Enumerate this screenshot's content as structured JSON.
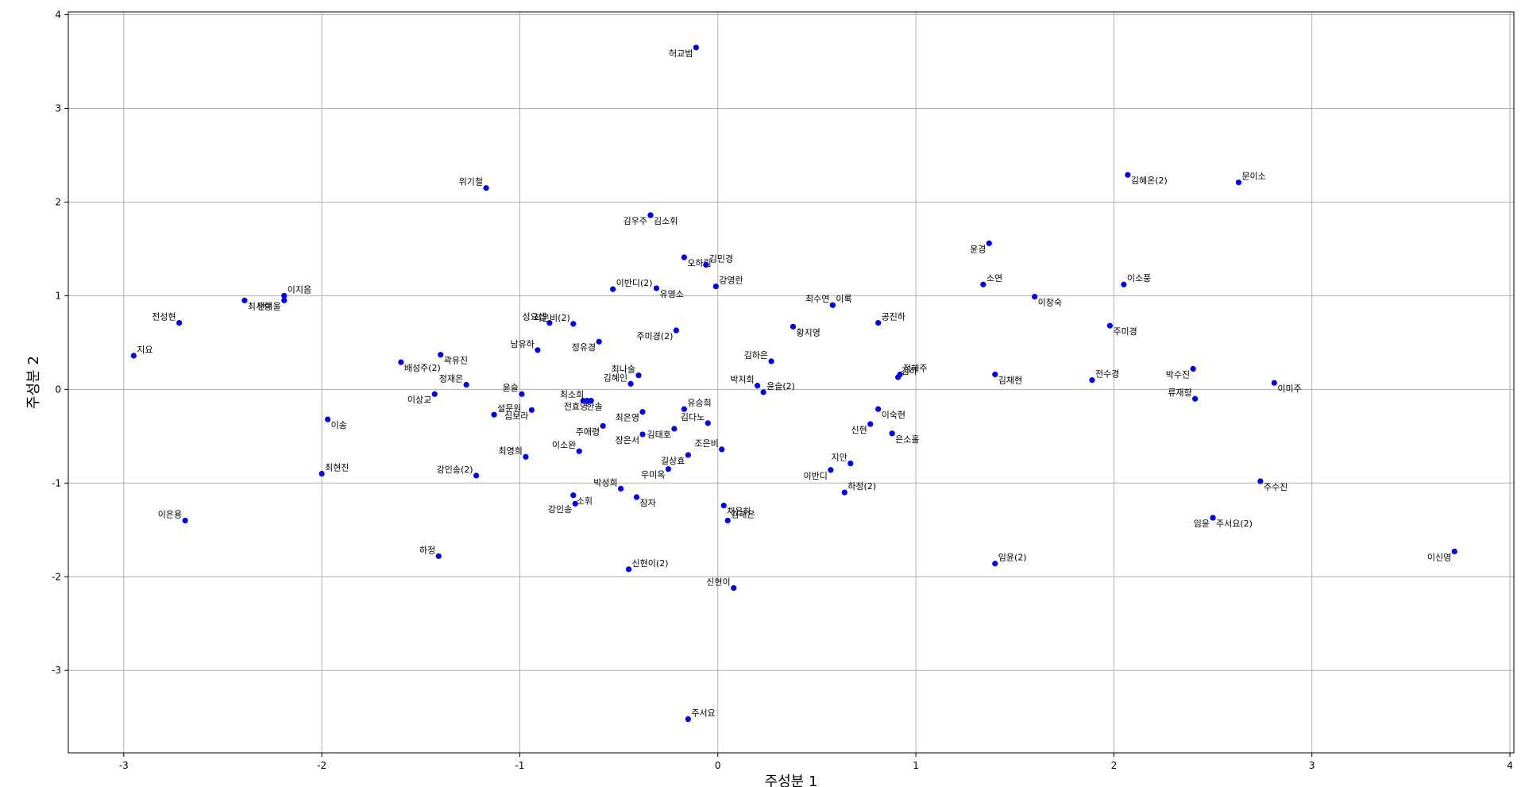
{
  "chart_data": {
    "type": "scatter",
    "xlabel": "주성분 1",
    "ylabel": "주성분 2",
    "xlim": [
      -3.28,
      4.02
    ],
    "ylim": [
      -3.88,
      4.03
    ],
    "xticks": [
      -3,
      -2,
      -1,
      0,
      1,
      2,
      3,
      4
    ],
    "yticks": [
      -3,
      -2,
      -1,
      0,
      1,
      2,
      3,
      4
    ],
    "grid": true,
    "marker_color": "#0000ff",
    "points": [
      {
        "label": "허교범",
        "x": -0.11,
        "y": 3.65,
        "pos": "bl"
      },
      {
        "label": "위기철",
        "x": -1.17,
        "y": 2.15,
        "pos": "tl"
      },
      {
        "label": "문이소",
        "x": 2.63,
        "y": 2.21,
        "pos": "tr"
      },
      {
        "label": "김혜온(2)",
        "x": 2.07,
        "y": 2.29,
        "pos": "br"
      },
      {
        "label": "김우주",
        "x": -0.34,
        "y": 1.86,
        "pos": "bl"
      },
      {
        "label": "김소휘",
        "x": -0.34,
        "y": 1.86,
        "pos": "br"
      },
      {
        "label": "윤경",
        "x": 1.37,
        "y": 1.56,
        "pos": "bl"
      },
      {
        "label": "오하림",
        "x": -0.17,
        "y": 1.41,
        "pos": "br"
      },
      {
        "label": "김민경",
        "x": -0.06,
        "y": 1.33,
        "pos": "tr"
      },
      {
        "label": "강영란",
        "x": -0.01,
        "y": 1.1,
        "pos": "tr"
      },
      {
        "label": "이반디(2)",
        "x": -0.53,
        "y": 1.07,
        "pos": "tr"
      },
      {
        "label": "유영소",
        "x": -0.31,
        "y": 1.08,
        "pos": "br"
      },
      {
        "label": "소연",
        "x": 1.34,
        "y": 1.12,
        "pos": "tr"
      },
      {
        "label": "이소풍",
        "x": 2.05,
        "y": 1.12,
        "pos": "tr"
      },
      {
        "label": "이창숙",
        "x": 1.6,
        "y": 0.99,
        "pos": "br"
      },
      {
        "label": "최수연",
        "x": 0.58,
        "y": 0.9,
        "pos": "tl"
      },
      {
        "label": "이록",
        "x": 0.58,
        "y": 0.9,
        "pos": "tr"
      },
      {
        "label": "공진하",
        "x": 0.81,
        "y": 0.71,
        "pos": "tr"
      },
      {
        "label": "황지영",
        "x": 0.38,
        "y": 0.67,
        "pos": "br"
      },
      {
        "label": "주미경",
        "x": 1.98,
        "y": 0.68,
        "pos": "br"
      },
      {
        "label": "주미경(2)",
        "x": -0.21,
        "y": 0.63,
        "pos": "bl"
      },
      {
        "label": "이지음",
        "x": -2.19,
        "y": 1.0,
        "pos": "tr"
      },
      {
        "label": "최사랑",
        "x": -2.39,
        "y": 0.95,
        "pos": "br"
      },
      {
        "label": "전여울",
        "x": -2.19,
        "y": 0.95,
        "pos": "bl"
      },
      {
        "label": "전성현",
        "x": -2.72,
        "y": 0.71,
        "pos": "tl"
      },
      {
        "label": "지요",
        "x": -2.95,
        "y": 0.36,
        "pos": "tr"
      },
      {
        "label": "성요셉",
        "x": -0.85,
        "y": 0.71,
        "pos": "tl"
      },
      {
        "label": "최은비(2)",
        "x": -0.73,
        "y": 0.7,
        "pos": "tl"
      },
      {
        "label": "정유경",
        "x": -0.6,
        "y": 0.51,
        "pos": "bl"
      },
      {
        "label": "남유하",
        "x": -0.91,
        "y": 0.42,
        "pos": "tl"
      },
      {
        "label": "곽유진",
        "x": -1.4,
        "y": 0.37,
        "pos": "br"
      },
      {
        "label": "배성주(2)",
        "x": -1.6,
        "y": 0.29,
        "pos": "br"
      },
      {
        "label": "정재은",
        "x": -1.27,
        "y": 0.05,
        "pos": "tl"
      },
      {
        "label": "이상교",
        "x": -1.43,
        "y": -0.05,
        "pos": "bl"
      },
      {
        "label": "윤슬",
        "x": -0.99,
        "y": -0.05,
        "pos": "tl"
      },
      {
        "label": "최나술",
        "x": -0.4,
        "y": 0.15,
        "pos": "tl"
      },
      {
        "label": "김혜인",
        "x": -0.44,
        "y": 0.06,
        "pos": "tl"
      },
      {
        "label": "최소희",
        "x": -0.66,
        "y": -0.12,
        "pos": "tl"
      },
      {
        "label": "전효영",
        "x": -0.64,
        "y": -0.12,
        "pos": "bl"
      },
      {
        "label": "한솔",
        "x": -0.68,
        "y": -0.12,
        "pos": "br"
      },
      {
        "label": "유승희",
        "x": -0.17,
        "y": -0.21,
        "pos": "tr"
      },
      {
        "label": "박지희",
        "x": 0.2,
        "y": 0.04,
        "pos": "tl"
      },
      {
        "label": "윤슬(2)",
        "x": 0.23,
        "y": -0.03,
        "pos": "tr"
      },
      {
        "label": "김하은",
        "x": 0.27,
        "y": 0.3,
        "pos": "tl"
      },
      {
        "label": "최은영",
        "x": -0.38,
        "y": -0.24,
        "pos": "bl"
      },
      {
        "label": "김다노",
        "x": -0.05,
        "y": -0.36,
        "pos": "tl"
      },
      {
        "label": "김태호",
        "x": -0.22,
        "y": -0.42,
        "pos": "bl"
      },
      {
        "label": "장은서",
        "x": -0.38,
        "y": -0.48,
        "pos": "bl"
      },
      {
        "label": "주애령",
        "x": -0.58,
        "y": -0.39,
        "pos": "bl"
      },
      {
        "label": "설문원",
        "x": -1.13,
        "y": -0.27,
        "pos": "tr"
      },
      {
        "label": "심보라",
        "x": -0.94,
        "y": -0.22,
        "pos": "bl"
      },
      {
        "label": "이소완",
        "x": -0.7,
        "y": -0.66,
        "pos": "tl"
      },
      {
        "label": "최영희",
        "x": -0.97,
        "y": -0.72,
        "pos": "tl"
      },
      {
        "label": "조은비",
        "x": 0.02,
        "y": -0.64,
        "pos": "tl"
      },
      {
        "label": "길상효",
        "x": -0.15,
        "y": -0.7,
        "pos": "bl"
      },
      {
        "label": "우미옥",
        "x": -0.25,
        "y": -0.85,
        "pos": "bl"
      },
      {
        "label": "이송",
        "x": -1.97,
        "y": -0.32,
        "pos": "br"
      },
      {
        "label": "최현진",
        "x": -2.0,
        "y": -0.9,
        "pos": "tr"
      },
      {
        "label": "강인송(2)",
        "x": -1.22,
        "y": -0.92,
        "pos": "tl"
      },
      {
        "label": "박성희",
        "x": -0.49,
        "y": -1.06,
        "pos": "tl"
      },
      {
        "label": "소휘",
        "x": -0.73,
        "y": -1.13,
        "pos": "br"
      },
      {
        "label": "강인송",
        "x": -0.72,
        "y": -1.22,
        "pos": "bl"
      },
      {
        "label": "잠자",
        "x": -0.41,
        "y": -1.15,
        "pos": "br"
      },
      {
        "label": "채은하",
        "x": 0.03,
        "y": -1.24,
        "pos": "br"
      },
      {
        "label": "김해은",
        "x": 0.05,
        "y": -1.4,
        "pos": "tr"
      },
      {
        "label": "이은용",
        "x": -2.69,
        "y": -1.4,
        "pos": "tl"
      },
      {
        "label": "하정",
        "x": -1.41,
        "y": -1.78,
        "pos": "tl"
      },
      {
        "label": "신현이(2)",
        "x": -0.45,
        "y": -1.92,
        "pos": "tr"
      },
      {
        "label": "신현이",
        "x": 0.08,
        "y": -2.12,
        "pos": "tl"
      },
      {
        "label": "주서요",
        "x": -0.15,
        "y": -3.52,
        "pos": "tr"
      },
      {
        "label": "이숙현",
        "x": 0.81,
        "y": -0.21,
        "pos": "br"
      },
      {
        "label": "신현",
        "x": 0.77,
        "y": -0.37,
        "pos": "bl"
      },
      {
        "label": "은소홀",
        "x": 0.88,
        "y": -0.47,
        "pos": "br"
      },
      {
        "label": "지안",
        "x": 0.67,
        "y": -0.79,
        "pos": "tl"
      },
      {
        "label": "이반디",
        "x": 0.57,
        "y": -0.86,
        "pos": "bl"
      },
      {
        "label": "하정(2)",
        "x": 0.64,
        "y": -1.1,
        "pos": "tr"
      },
      {
        "label": "정해주",
        "x": 0.92,
        "y": 0.16,
        "pos": "tr"
      },
      {
        "label": "김하",
        "x": 0.91,
        "y": 0.13,
        "pos": "tr"
      },
      {
        "label": "김채현",
        "x": 1.4,
        "y": 0.16,
        "pos": "br"
      },
      {
        "label": "전수경",
        "x": 1.89,
        "y": 0.1,
        "pos": "tr"
      },
      {
        "label": "박수진",
        "x": 2.4,
        "y": 0.22,
        "pos": "bl"
      },
      {
        "label": "류재향",
        "x": 2.41,
        "y": -0.1,
        "pos": "tl"
      },
      {
        "label": "이미주",
        "x": 2.81,
        "y": 0.07,
        "pos": "br"
      },
      {
        "label": "주수진",
        "x": 2.74,
        "y": -0.98,
        "pos": "br"
      },
      {
        "label": "임윤",
        "x": 2.5,
        "y": -1.37,
        "pos": "bl"
      },
      {
        "label": "주서요(2)",
        "x": 2.5,
        "y": -1.37,
        "pos": "br"
      },
      {
        "label": "임윤(2)",
        "x": 1.4,
        "y": -1.86,
        "pos": "tr"
      },
      {
        "label": "이신영",
        "x": 3.72,
        "y": -1.73,
        "pos": "bl"
      }
    ]
  }
}
